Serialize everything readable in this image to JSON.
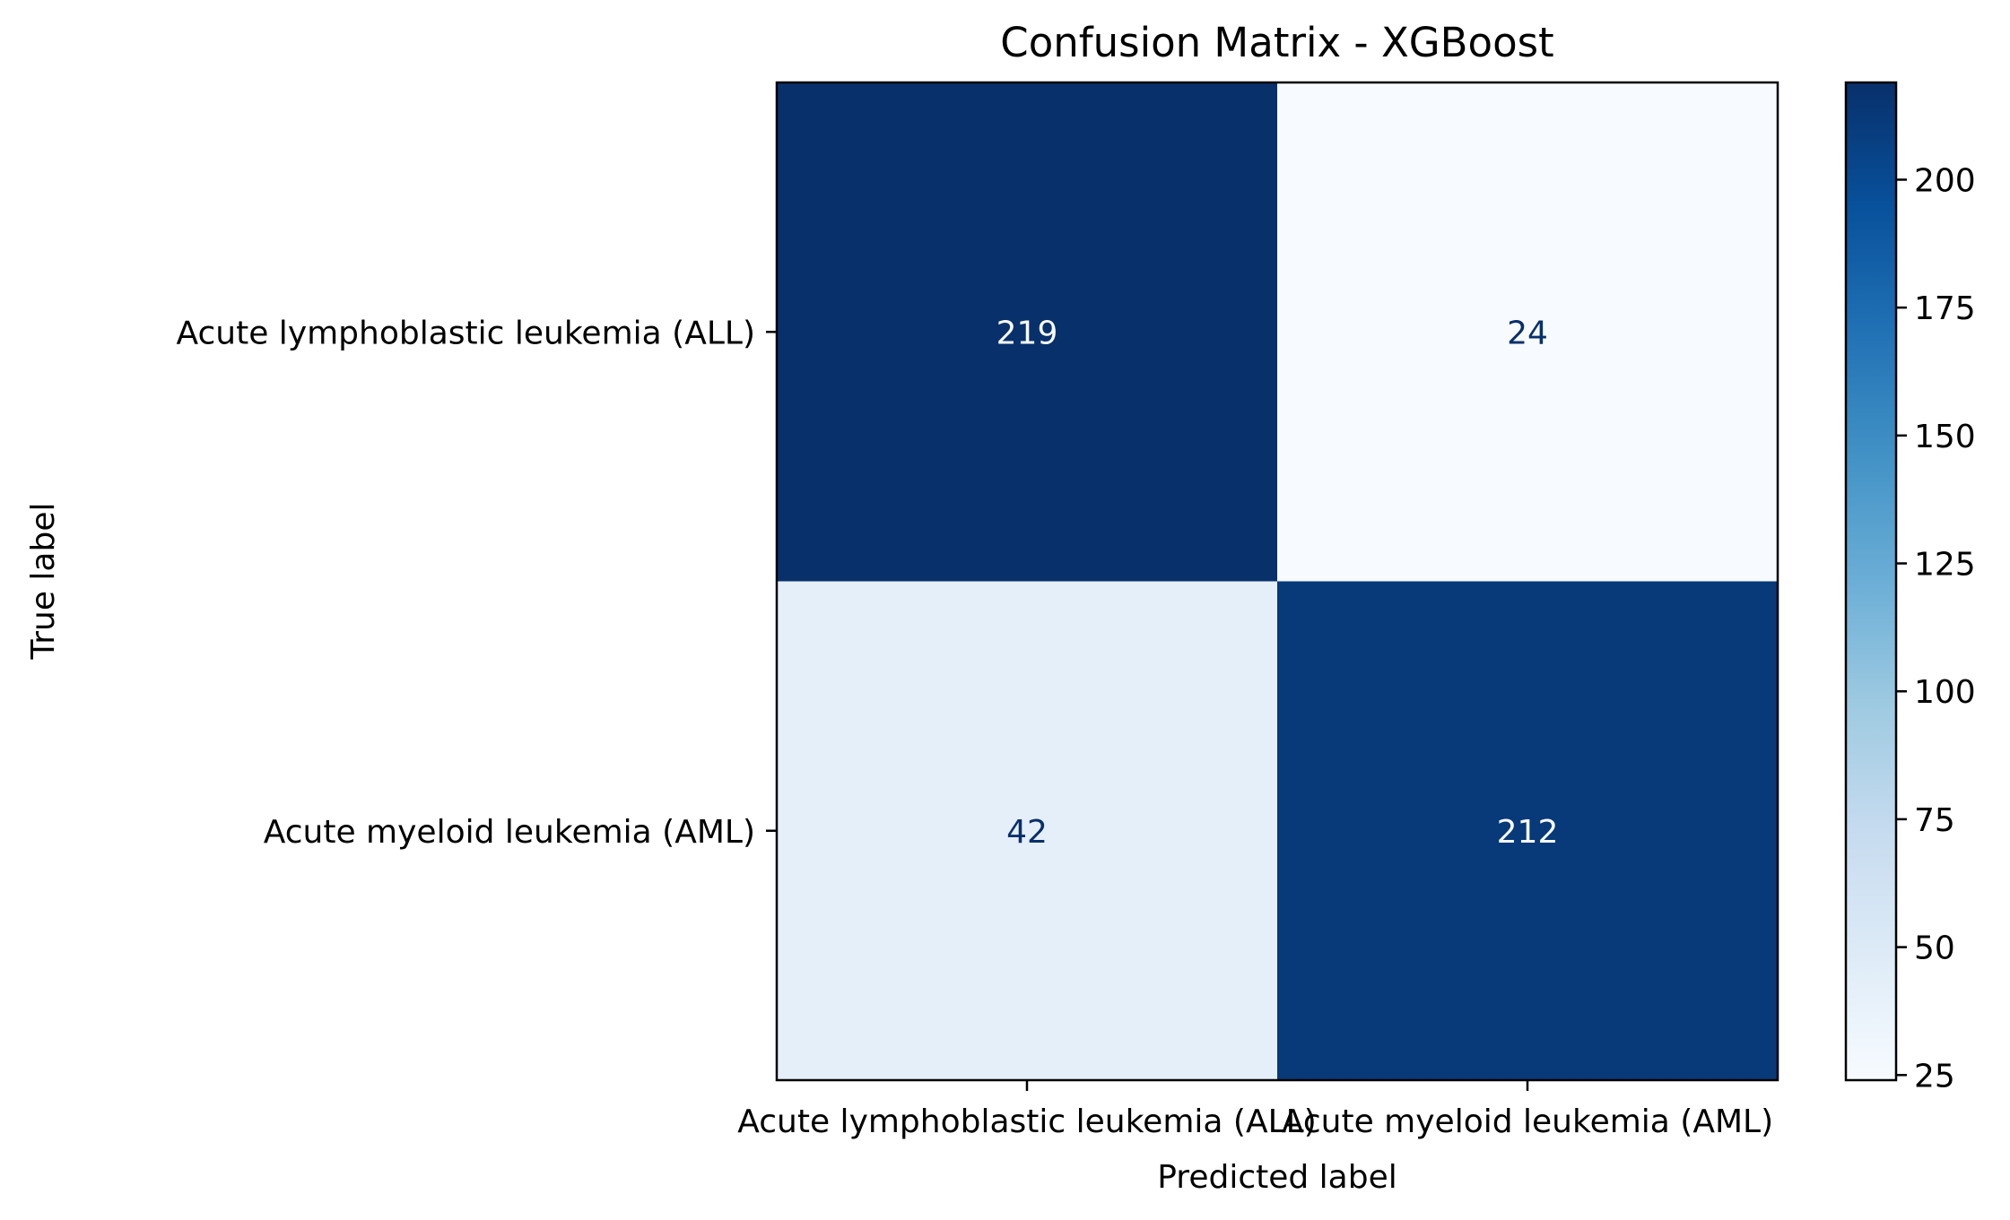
{
  "chart_data": {
    "type": "heatmap",
    "title": "Confusion Matrix - XGBoost",
    "xlabel": "Predicted label",
    "ylabel": "True label",
    "x_categories": [
      "Acute lymphoblastic leukemia (ALL)",
      "Acute myeloid leukemia (AML)"
    ],
    "y_categories": [
      "Acute lymphoblastic leukemia (ALL)",
      "Acute myeloid leukemia (AML)"
    ],
    "values": [
      [
        219,
        24
      ],
      [
        42,
        212
      ]
    ],
    "colormap": "Blues",
    "colorbar": {
      "range": [
        24,
        219
      ],
      "ticks": [
        25,
        50,
        75,
        100,
        125,
        150,
        175,
        200
      ]
    },
    "grid": false
  }
}
